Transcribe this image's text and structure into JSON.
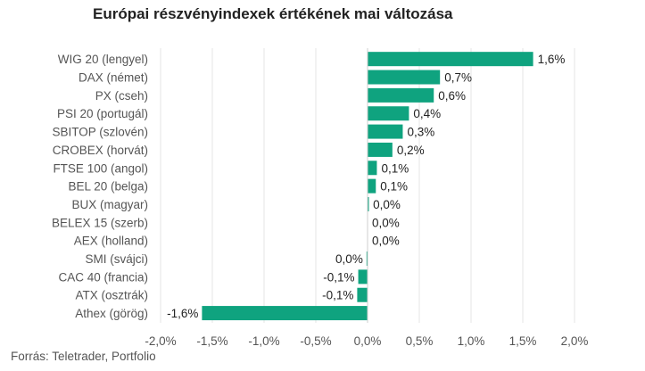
{
  "title": "Európai részvényindexek értékének mai változása",
  "source": "Forrás: Teletrader, Portfolio",
  "chart_data": {
    "type": "bar",
    "orientation": "horizontal",
    "title": "Európai részvényindexek értékének mai változása",
    "categories": [
      "WIG 20 (lengyel)",
      "DAX (német)",
      "PX (cseh)",
      "PSI 20 (portugál)",
      "SBITOP (szlovén)",
      "CROBEX (horvát)",
      "FTSE 100 (angol)",
      "BEL 20 (belga)",
      "BUX (magyar)",
      "BELEX 15 (szerb)",
      "AEX (holland)",
      "SMI (svájci)",
      "CAC 40 (francia)",
      "ATX (osztrák)",
      "Athex (görög)"
    ],
    "values": [
      1.6,
      0.7,
      0.64,
      0.4,
      0.34,
      0.24,
      0.09,
      0.08,
      0.01,
      0.0,
      0.0,
      -0.01,
      -0.09,
      -0.1,
      -1.6
    ],
    "value_labels": [
      "1,6%",
      "0,7%",
      "0,6%",
      "0,4%",
      "0,3%",
      "0,2%",
      "0,1%",
      "0,1%",
      "0,0%",
      "0,0%",
      "0,0%",
      "0,0%",
      "-0,1%",
      "-0,1%",
      "-1,6%"
    ],
    "xlim": [
      -2.0,
      2.0
    ],
    "xticks": [
      -2.0,
      -1.5,
      -1.0,
      -0.5,
      0.0,
      0.5,
      1.0,
      1.5,
      2.0
    ],
    "xtick_labels": [
      "-2,0%",
      "-1,5%",
      "-1,0%",
      "-0,5%",
      "0,0%",
      "0,5%",
      "1,0%",
      "1,5%",
      "2,0%"
    ],
    "grid": true,
    "bar_color": "#0fa37f",
    "grid_color": "#e6e6e6"
  }
}
